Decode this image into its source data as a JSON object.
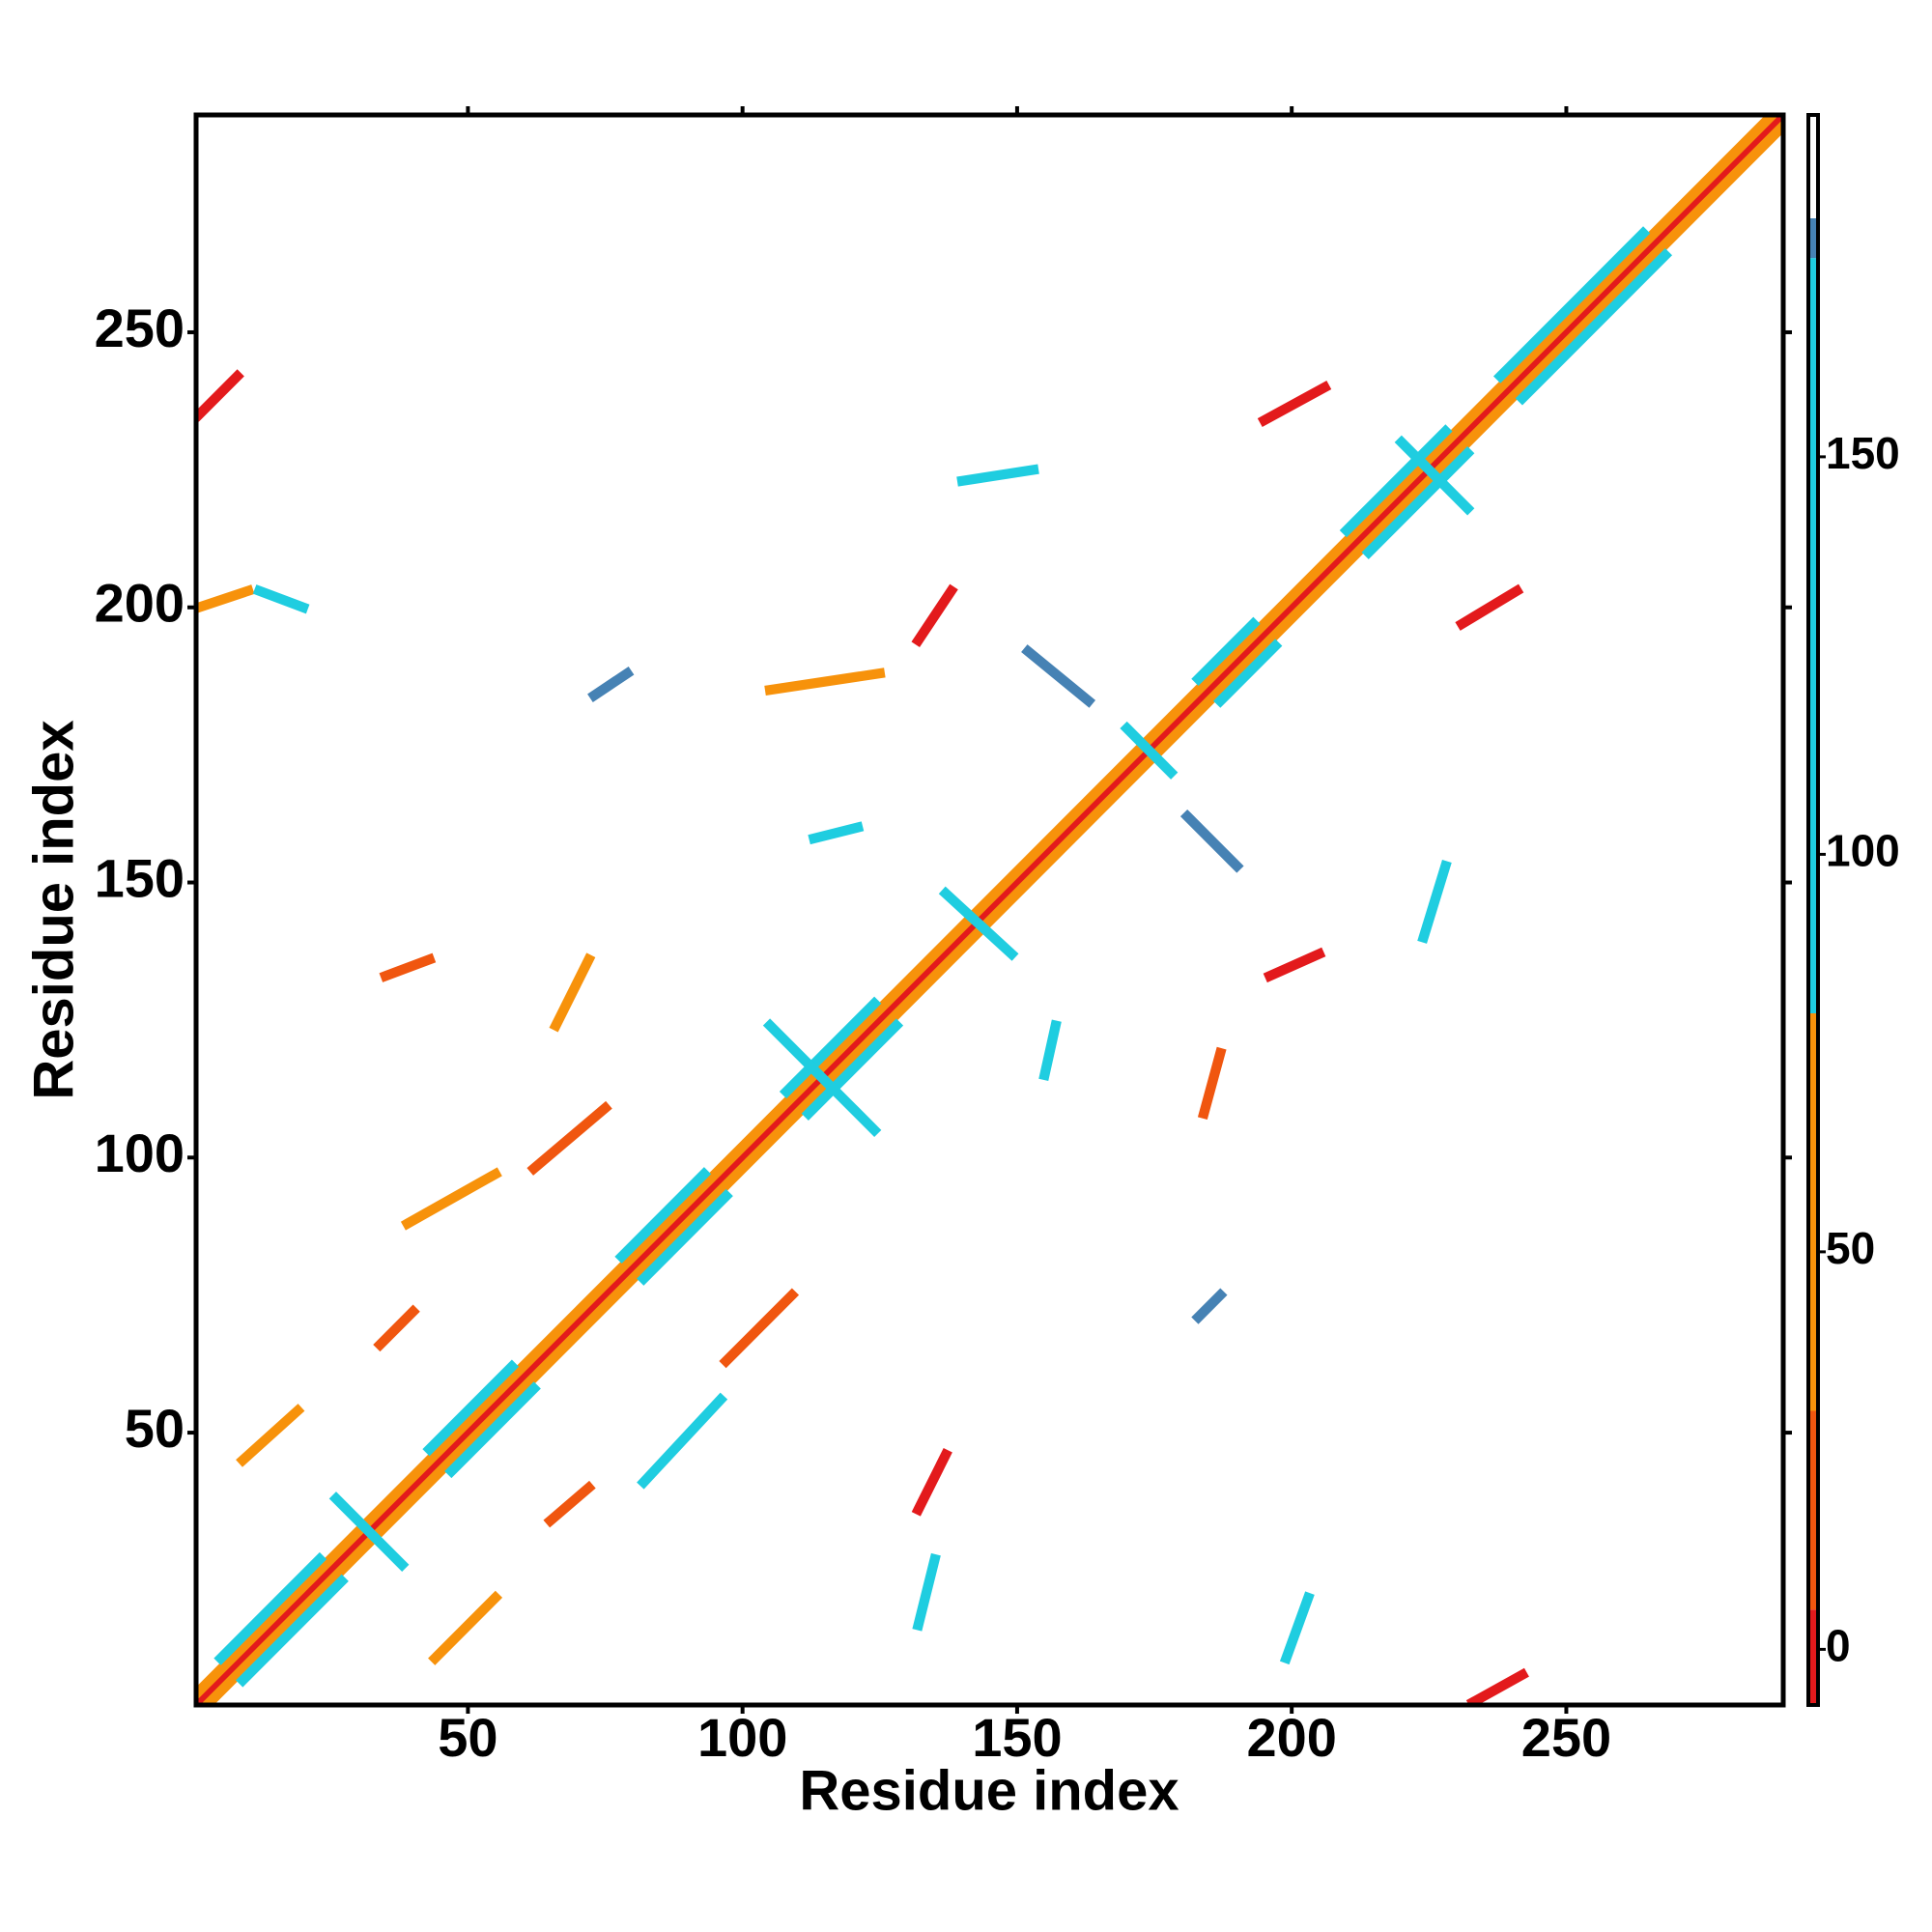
{
  "chart_data": {
    "type": "heatmap",
    "xlabel": "Residue index",
    "ylabel": "Residue index",
    "xlim": [
      0.5,
      289.5
    ],
    "ylim": [
      0.5,
      289.5
    ],
    "xticks": [
      50,
      100,
      150,
      200,
      250
    ],
    "yticks": [
      50,
      100,
      150,
      200,
      250
    ],
    "colorbar": {
      "lim": [
        -7,
        193
      ],
      "ticks": [
        0,
        50,
        100,
        150
      ],
      "scale": [
        {
          "from": -7,
          "to": 5,
          "color": "#e31a1c"
        },
        {
          "from": 5,
          "to": 30,
          "color": "#f0560f"
        },
        {
          "from": 30,
          "to": 80,
          "color": "#f7920b"
        },
        {
          "from": 80,
          "to": 175,
          "color": "#1fcde0"
        },
        {
          "from": 175,
          "to": 180,
          "color": "#4682b4"
        },
        {
          "from": 180,
          "to": 193,
          "color": "#ffffff"
        }
      ]
    },
    "contacts": [
      {
        "x": [
          1,
          289
        ],
        "y": [
          1,
          289
        ],
        "value": 0
      },
      {
        "x": [
          3,
          289
        ],
        "y": [
          1,
          287
        ],
        "value": 55
      },
      {
        "x": [
          1,
          287
        ],
        "y": [
          3,
          289
        ],
        "value": 55
      },
      {
        "x": [
          9,
          27
        ],
        "y": [
          5,
          23
        ],
        "value": 100
      },
      {
        "x": [
          5,
          23
        ],
        "y": [
          9,
          27
        ],
        "value": 100
      },
      {
        "x": [
          47,
          62
        ],
        "y": [
          43,
          58
        ],
        "value": 100
      },
      {
        "x": [
          43,
          58
        ],
        "y": [
          47,
          62
        ],
        "value": 100
      },
      {
        "x": [
          82,
          97
        ],
        "y": [
          78,
          93
        ],
        "value": 100
      },
      {
        "x": [
          78,
          93
        ],
        "y": [
          82,
          97
        ],
        "value": 100
      },
      {
        "x": [
          112,
          128
        ],
        "y": [
          108,
          124
        ],
        "value": 100
      },
      {
        "x": [
          108,
          124
        ],
        "y": [
          112,
          128
        ],
        "value": 100
      },
      {
        "x": [
          187,
          197
        ],
        "y": [
          183,
          193
        ],
        "value": 100
      },
      {
        "x": [
          183,
          193
        ],
        "y": [
          187,
          197
        ],
        "value": 100
      },
      {
        "x": [
          214,
          232
        ],
        "y": [
          210,
          228
        ],
        "value": 100
      },
      {
        "x": [
          210,
          228
        ],
        "y": [
          214,
          232
        ],
        "value": 100
      },
      {
        "x": [
          242,
          268
        ],
        "y": [
          238,
          264
        ],
        "value": 100
      },
      {
        "x": [
          238,
          264
        ],
        "y": [
          242,
          268
        ],
        "value": 100
      },
      {
        "x": [
          233,
          242
        ],
        "y": [
          1,
          6
        ],
        "value": 0
      },
      {
        "x": [
          1,
          8
        ],
        "y": [
          235,
          242
        ],
        "value": 0
      },
      {
        "x": [
          195,
          206
        ],
        "y": [
          234,
          240
        ],
        "value": 0
      },
      {
        "x": [
          132,
          138
        ],
        "y": [
          194,
          203
        ],
        "value": 0
      },
      {
        "x": [
          231,
          241
        ],
        "y": [
          197,
          203
        ],
        "value": 0
      },
      {
        "x": [
          196,
          205
        ],
        "y": [
          133,
          137
        ],
        "value": 0
      },
      {
        "x": [
          35,
          43
        ],
        "y": [
          133,
          136
        ],
        "value": 15
      },
      {
        "x": [
          66,
          72
        ],
        "y": [
          124,
          136
        ],
        "value": 55
      },
      {
        "x": [
          62,
          75
        ],
        "y": [
          98,
          109
        ],
        "value": 15
      },
      {
        "x": [
          97,
          109
        ],
        "y": [
          63,
          75
        ],
        "value": 15
      },
      {
        "x": [
          34,
          40
        ],
        "y": [
          66,
          72
        ],
        "value": 15
      },
      {
        "x": [
          65,
          72
        ],
        "y": [
          34,
          40
        ],
        "value": 15
      },
      {
        "x": [
          132,
          137
        ],
        "y": [
          36,
          46
        ],
        "value": 0
      },
      {
        "x": [
          152,
          163
        ],
        "y": [
          192,
          183
        ],
        "value": 178
      },
      {
        "x": [
          181,
          190
        ],
        "y": [
          162,
          153
        ],
        "value": 178
      },
      {
        "x": [
          73,
          79
        ],
        "y": [
          184,
          188
        ],
        "value": 178
      },
      {
        "x": [
          183,
          187
        ],
        "y": [
          71,
          75
        ],
        "value": 178
      },
      {
        "x": [
          9,
          19
        ],
        "y": [
          45,
          54
        ],
        "value": 55
      },
      {
        "x": [
          44,
          55
        ],
        "y": [
          9,
          20
        ],
        "value": 55
      },
      {
        "x": [
          1,
          10
        ],
        "y": [
          200,
          203
        ],
        "value": 55
      },
      {
        "x": [
          12,
          20
        ],
        "y": [
          203,
          200
        ],
        "value": 100
      },
      {
        "x": [
          140,
          153
        ],
        "y": [
          223,
          225
        ],
        "value": 100
      },
      {
        "x": [
          105,
          125
        ],
        "y": [
          185,
          188
        ],
        "value": 55
      },
      {
        "x": [
          224,
          228
        ],
        "y": [
          140,
          153
        ],
        "value": 100
      },
      {
        "x": [
          199,
          203
        ],
        "y": [
          9,
          20
        ],
        "value": 100
      },
      {
        "x": [
          132,
          135
        ],
        "y": [
          15,
          27
        ],
        "value": 100
      },
      {
        "x": [
          184,
          187
        ],
        "y": [
          108,
          119
        ],
        "value": 15
      },
      {
        "x": [
          155,
          157
        ],
        "y": [
          115,
          124
        ],
        "value": 100
      },
      {
        "x": [
          113,
          121
        ],
        "y": [
          158,
          160
        ],
        "value": 100
      },
      {
        "x": [
          39,
          55
        ],
        "y": [
          88,
          97
        ],
        "value": 55
      },
      {
        "x": [
          82,
          96
        ],
        "y": [
          41,
          56
        ],
        "value": 100
      },
      {
        "x": [
          220,
          232
        ],
        "y": [
          230,
          218
        ],
        "value": 100
      },
      {
        "x": [
          105,
          124
        ],
        "y": [
          124,
          105
        ],
        "value": 100
      },
      {
        "x": [
          137,
          149
        ],
        "y": [
          148,
          137
        ],
        "value": 100
      },
      {
        "x": [
          26,
          38
        ],
        "y": [
          38,
          26
        ],
        "value": 100
      },
      {
        "x": [
          170,
          178
        ],
        "y": [
          178,
          170
        ],
        "value": 100
      }
    ]
  }
}
